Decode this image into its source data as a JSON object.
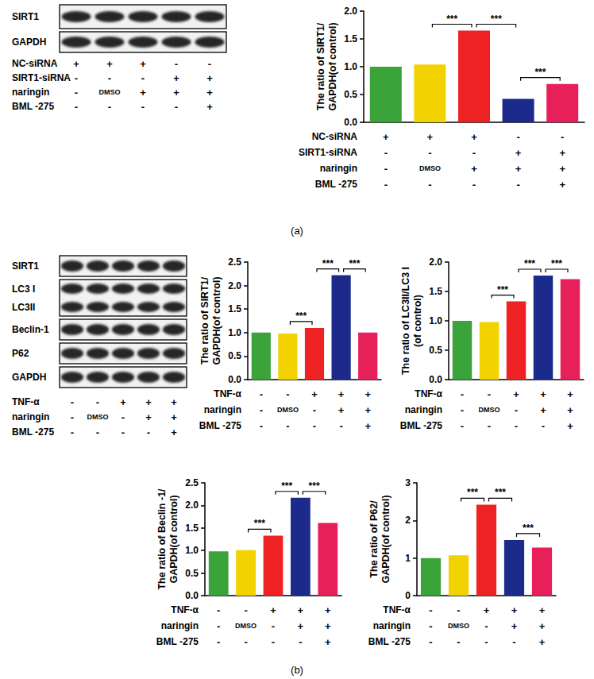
{
  "chart_data": [
    {
      "type": "bar",
      "y_label": "The ratio of SIRT1/\nGAPDH(of control)",
      "categories": [
        null,
        null,
        null,
        null,
        null
      ],
      "values": [
        1.0,
        1.04,
        1.65,
        0.42,
        0.69
      ],
      "colors": [
        "#3aa33a",
        "#f2d200",
        "#ee2222",
        "#1c2a8c",
        "#e8205a"
      ],
      "ylim": [
        0,
        2.0
      ],
      "yticks": [
        {
          "value": 0,
          "label": "0.0"
        },
        {
          "value": 0.5,
          "label": "0.5"
        },
        {
          "value": 1.0,
          "label": "1.0"
        },
        {
          "value": 1.5,
          "label": "1.5"
        },
        {
          "value": 2.0,
          "label": "2.0"
        }
      ],
      "grid": false,
      "significance": [
        {
          "between": [
            1,
            2
          ],
          "label": "***"
        },
        {
          "between": [
            2,
            3
          ],
          "label": "***"
        },
        {
          "between": [
            3,
            4
          ],
          "label": "***"
        }
      ],
      "conditions": [
        {
          "label": "NC-siRNA",
          "marks": [
            "+",
            "+",
            "+",
            "-",
            "-"
          ]
        },
        {
          "label": "SIRT1-siRNA",
          "marks": [
            "-",
            "-",
            "-",
            "+",
            "+"
          ]
        },
        {
          "label": "naringin",
          "marks": [
            "-",
            "DMSO",
            "+",
            "+",
            "+"
          ]
        },
        {
          "label": "BML -275",
          "marks": [
            "-",
            "-",
            "-",
            "-",
            "+"
          ]
        }
      ]
    },
    {
      "type": "bar",
      "y_label": "The ratio of SIRT1/\nGAPDH(of control)",
      "categories": [
        null,
        null,
        null,
        null,
        null
      ],
      "values": [
        1.0,
        0.98,
        1.1,
        2.22,
        1.0
      ],
      "colors": [
        "#3aa33a",
        "#f2d200",
        "#ee2222",
        "#1c2a8c",
        "#e8205a"
      ],
      "ylim": [
        0,
        2.5
      ],
      "yticks": [
        {
          "value": 0,
          "label": "0.0"
        },
        {
          "value": 0.5,
          "label": "0.5"
        },
        {
          "value": 1.0,
          "label": "1.0"
        },
        {
          "value": 1.5,
          "label": "1.5"
        },
        {
          "value": 2.0,
          "label": "2.0"
        },
        {
          "value": 2.5,
          "label": "2.5"
        }
      ],
      "grid": false,
      "significance": [
        {
          "between": [
            1,
            2
          ],
          "label": "***"
        },
        {
          "between": [
            2,
            3
          ],
          "label": "***"
        },
        {
          "between": [
            3,
            4
          ],
          "label": "***"
        }
      ],
      "conditions": [
        {
          "label": "TNF-α",
          "marks": [
            "-",
            "-",
            "+",
            "+",
            "+"
          ]
        },
        {
          "label": "naringin",
          "marks": [
            "-",
            "DMSO",
            "-",
            "+",
            "+"
          ]
        },
        {
          "label": "BML -275",
          "marks": [
            "-",
            "-",
            "-",
            "-",
            "+"
          ]
        }
      ]
    },
    {
      "type": "bar",
      "y_label": "The ratio of LC3II/LC3 I\n(of control)",
      "categories": [
        null,
        null,
        null,
        null,
        null
      ],
      "values": [
        1.0,
        0.98,
        1.33,
        1.77,
        1.71
      ],
      "colors": [
        "#3aa33a",
        "#f2d200",
        "#ee2222",
        "#1c2a8c",
        "#e8205a"
      ],
      "ylim": [
        0,
        2.0
      ],
      "yticks": [
        {
          "value": 0,
          "label": "0.0"
        },
        {
          "value": 0.5,
          "label": "0.5"
        },
        {
          "value": 1.0,
          "label": "1.0"
        },
        {
          "value": 1.5,
          "label": "1.5"
        },
        {
          "value": 2.0,
          "label": "2.0"
        }
      ],
      "grid": false,
      "significance": [
        {
          "between": [
            1,
            2
          ],
          "label": "***"
        },
        {
          "between": [
            2,
            3
          ],
          "label": "***"
        },
        {
          "between": [
            3,
            4
          ],
          "label": "***"
        }
      ],
      "conditions": [
        {
          "label": "TNF-α",
          "marks": [
            "-",
            "-",
            "+",
            "+",
            "+"
          ]
        },
        {
          "label": "naringin",
          "marks": [
            "-",
            "DMSO",
            "-",
            "+",
            "+"
          ]
        },
        {
          "label": "BML -275",
          "marks": [
            "-",
            "-",
            "-",
            "-",
            "+"
          ]
        }
      ]
    },
    {
      "type": "bar",
      "y_label": "The ratio of Beclin -1/\nGAPDH(of control)",
      "categories": [
        null,
        null,
        null,
        null,
        null
      ],
      "values": [
        0.98,
        1.01,
        1.33,
        2.17,
        1.61
      ],
      "colors": [
        "#3aa33a",
        "#f2d200",
        "#ee2222",
        "#1c2a8c",
        "#e8205a"
      ],
      "ylim": [
        0,
        2.5
      ],
      "yticks": [
        {
          "value": 0,
          "label": "0.0"
        },
        {
          "value": 0.5,
          "label": "0.5"
        },
        {
          "value": 1.0,
          "label": "1.0"
        },
        {
          "value": 1.5,
          "label": "1.5"
        },
        {
          "value": 2.0,
          "label": "2.0"
        },
        {
          "value": 2.5,
          "label": "2.5"
        }
      ],
      "grid": false,
      "significance": [
        {
          "between": [
            1,
            2
          ],
          "label": "***"
        },
        {
          "between": [
            2,
            3
          ],
          "label": "***"
        },
        {
          "between": [
            3,
            4
          ],
          "label": "***"
        }
      ],
      "conditions": [
        {
          "label": "TNF-α",
          "marks": [
            "-",
            "-",
            "+",
            "+",
            "+"
          ]
        },
        {
          "label": "naringin",
          "marks": [
            "-",
            "DMSO",
            "-",
            "+",
            "+"
          ]
        },
        {
          "label": "BML -275",
          "marks": [
            "-",
            "-",
            "-",
            "-",
            "+"
          ]
        }
      ]
    },
    {
      "type": "bar",
      "y_label": "The ratio of P62/\nGAPDH(of control)",
      "categories": [
        null,
        null,
        null,
        null,
        null
      ],
      "values": [
        1.0,
        1.07,
        2.42,
        1.48,
        1.28
      ],
      "colors": [
        "#3aa33a",
        "#f2d200",
        "#ee2222",
        "#1c2a8c",
        "#e8205a"
      ],
      "ylim": [
        0,
        3
      ],
      "yticks": [
        0,
        1,
        2,
        3
      ],
      "grid": false,
      "significance": [
        {
          "between": [
            1,
            2
          ],
          "label": "***"
        },
        {
          "between": [
            2,
            3
          ],
          "label": "***"
        },
        {
          "between": [
            3,
            4
          ],
          "label": "***"
        }
      ],
      "conditions": [
        {
          "label": "TNF-α",
          "marks": [
            "-",
            "-",
            "+",
            "+",
            "+"
          ]
        },
        {
          "label": "naringin",
          "marks": [
            "-",
            "DMSO",
            "-",
            "+",
            "+"
          ]
        },
        {
          "label": "BML -275",
          "marks": [
            "-",
            "-",
            "-",
            "-",
            "+"
          ]
        }
      ]
    }
  ],
  "blots": [
    {
      "rows": [
        [
          "SIRT1"
        ],
        [
          "GAPDH"
        ]
      ],
      "conditions": [
        {
          "label": "NC-siRNA",
          "marks": [
            "+",
            "+",
            "+",
            "-",
            "-"
          ]
        },
        {
          "label": "SIRT1-siRNA",
          "marks": [
            "-",
            "-",
            "-",
            "+",
            "+"
          ]
        },
        {
          "label": "naringin",
          "marks": [
            "-",
            "DMSO",
            "+",
            "+",
            "+"
          ]
        },
        {
          "label": "BML -275",
          "marks": [
            "-",
            "-",
            "-",
            "-",
            "+"
          ]
        }
      ]
    },
    {
      "rows": [
        [
          "SIRT1"
        ],
        [
          "LC3 I",
          "LC3II"
        ],
        [
          "Beclin-1"
        ],
        [
          "P62"
        ],
        [
          "GAPDH"
        ]
      ],
      "conditions": [
        {
          "label": "TNF-α",
          "marks": [
            "-",
            "-",
            "+",
            "+",
            "+"
          ]
        },
        {
          "label": "naringin",
          "marks": [
            "-",
            "DMSO",
            "-",
            "+",
            "+"
          ]
        },
        {
          "label": "BML -275",
          "marks": [
            "-",
            "-",
            "-",
            "-",
            "+"
          ]
        }
      ]
    }
  ],
  "panel_labels": [
    "(a)",
    "(b)"
  ]
}
